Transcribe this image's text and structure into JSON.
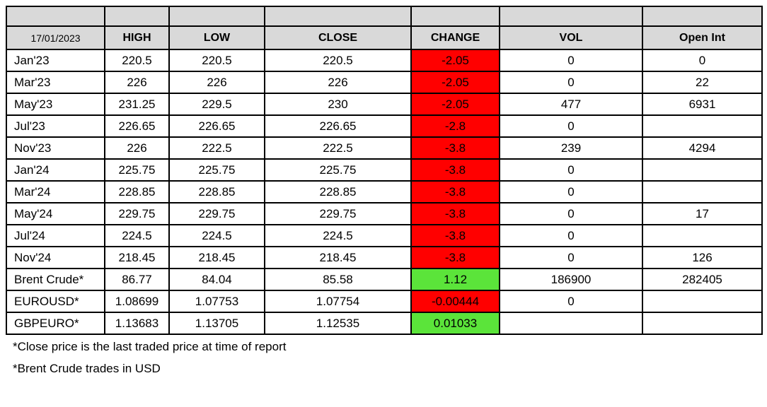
{
  "table": {
    "date_label": "17/01/2023",
    "columns": [
      "HIGH",
      "LOW",
      "CLOSE",
      "CHANGE",
      "VOL",
      "Open Int"
    ],
    "rows": [
      {
        "label": "Jan'23",
        "high": "220.5",
        "low": "220.5",
        "close": "220.5",
        "change": "-2.05",
        "vol": "0",
        "open_int": "0"
      },
      {
        "label": "Mar'23",
        "high": "226",
        "low": "226",
        "close": "226",
        "change": "-2.05",
        "vol": "0",
        "open_int": "22"
      },
      {
        "label": "May'23",
        "high": "231.25",
        "low": "229.5",
        "close": "230",
        "change": "-2.05",
        "vol": "477",
        "open_int": "6931"
      },
      {
        "label": "Jul'23",
        "high": "226.65",
        "low": "226.65",
        "close": "226.65",
        "change": "-2.8",
        "vol": "0",
        "open_int": ""
      },
      {
        "label": "Nov'23",
        "high": "226",
        "low": "222.5",
        "close": "222.5",
        "change": "-3.8",
        "vol": "239",
        "open_int": "4294"
      },
      {
        "label": "Jan'24",
        "high": "225.75",
        "low": "225.75",
        "close": "225.75",
        "change": "-3.8",
        "vol": "0",
        "open_int": ""
      },
      {
        "label": "Mar'24",
        "high": "228.85",
        "low": "228.85",
        "close": "228.85",
        "change": "-3.8",
        "vol": "0",
        "open_int": ""
      },
      {
        "label": "May'24",
        "high": "229.75",
        "low": "229.75",
        "close": "229.75",
        "change": "-3.8",
        "vol": "0",
        "open_int": "17"
      },
      {
        "label": "Jul'24",
        "high": "224.5",
        "low": "224.5",
        "close": "224.5",
        "change": "-3.8",
        "vol": "0",
        "open_int": ""
      },
      {
        "label": "Nov'24",
        "high": "218.45",
        "low": "218.45",
        "close": "218.45",
        "change": "-3.8",
        "vol": "0",
        "open_int": "126"
      },
      {
        "label": "Brent Crude*",
        "high": "86.77",
        "low": "84.04",
        "close": "85.58",
        "change": "1.12",
        "vol": "186900",
        "open_int": "282405"
      },
      {
        "label": "EUROUSD*",
        "high": "1.08699",
        "low": "1.07753",
        "close": "1.07754",
        "change": "-0.00444",
        "vol": "0",
        "open_int": ""
      },
      {
        "label": "GBPEURO*",
        "high": "1.13683",
        "low": "1.13705",
        "close": "1.12535",
        "change": "0.01033",
        "vol": "",
        "open_int": ""
      }
    ],
    "colors": {
      "header_bg": "#D9D9D9",
      "negative_change_bg": "#FF0000",
      "positive_change_bg": "#5BE43A",
      "border": "#000000"
    }
  },
  "footnotes": [
    "*Close price is the last traded price at time of report",
    "*Brent Crude trades in USD"
  ]
}
